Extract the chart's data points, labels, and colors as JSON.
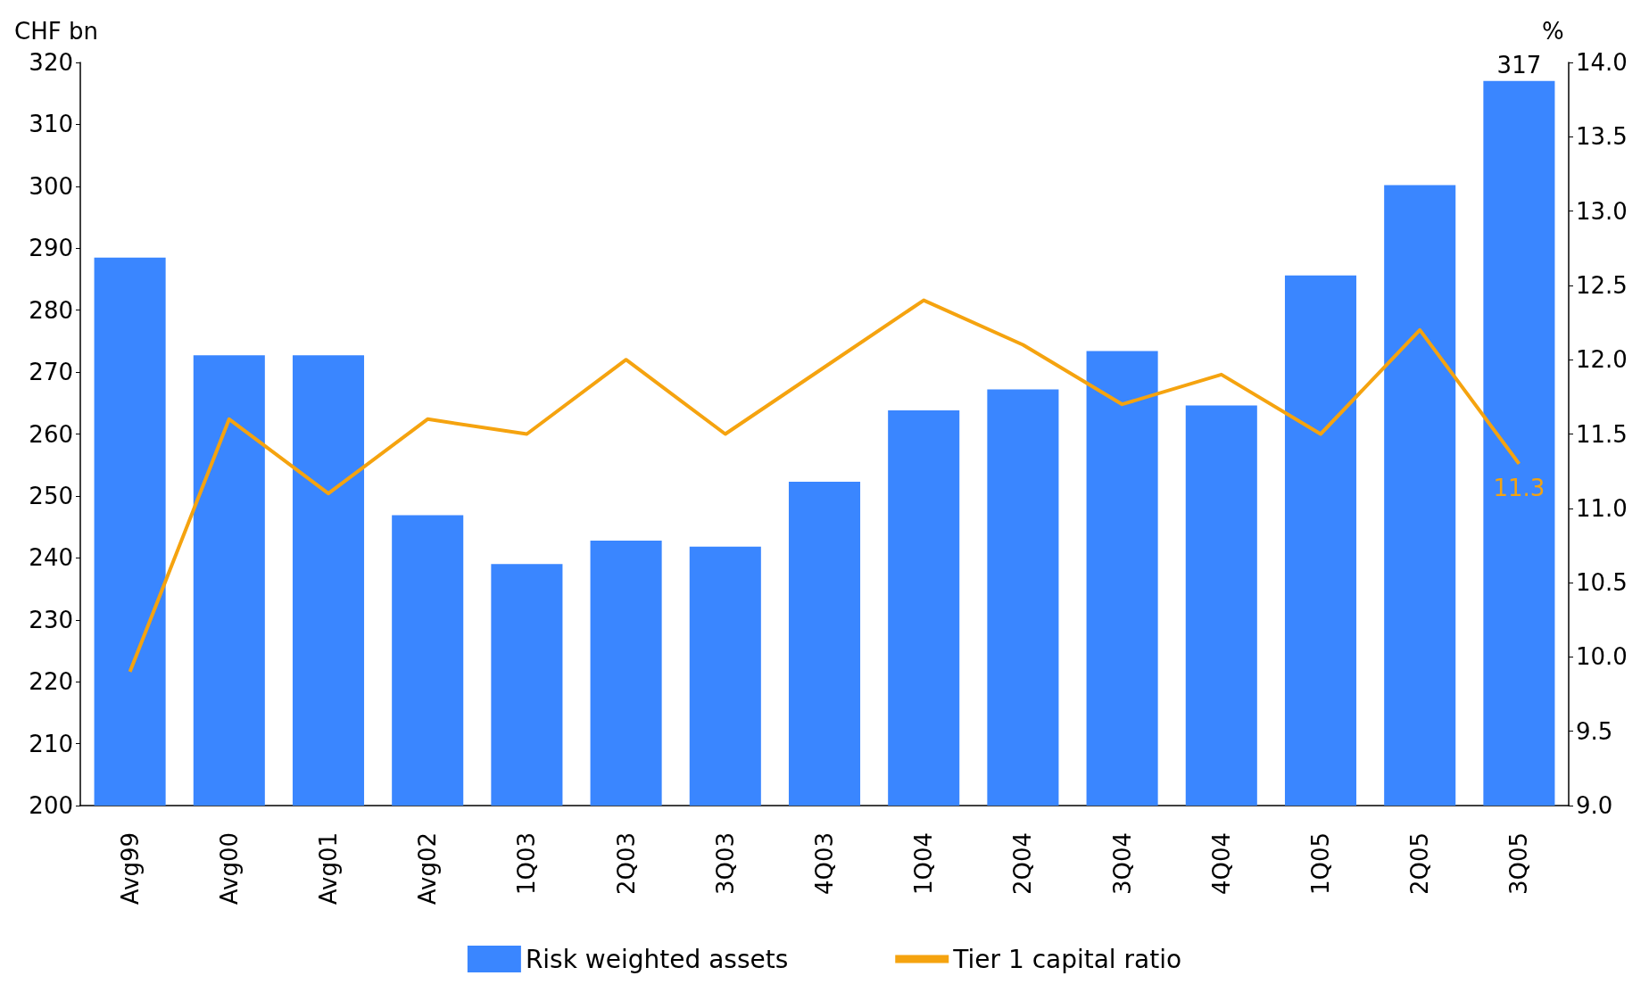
{
  "chart_data": {
    "type": "bar",
    "ylabel": "CHF bn",
    "y2label": "%",
    "categories": [
      "Avg99",
      "Avg00",
      "Avg01",
      "Avg02",
      "1Q03",
      "2Q03",
      "3Q03",
      "4Q03",
      "1Q04",
      "2Q04",
      "3Q04",
      "4Q04",
      "1Q05",
      "2Q05",
      "3Q05"
    ],
    "series": [
      {
        "name": "Risk weighted assets",
        "color": "#3a86ff",
        "values": [
          288.5,
          272.7,
          272.7,
          246.9,
          239,
          242.8,
          241.8,
          252.3,
          263.8,
          267.2,
          273.4,
          264.6,
          285.6,
          300.2,
          317
        ],
        "value_labels": [
          null,
          null,
          null,
          null,
          null,
          null,
          null,
          null,
          null,
          null,
          null,
          null,
          null,
          null,
          "317"
        ]
      },
      {
        "name": "Tier 1 capital ratio",
        "type": "line",
        "axis": "y2",
        "color": "#f5a30f",
        "values": [
          9.9,
          11.6,
          11.1,
          11.6,
          11.5,
          12.0,
          11.5,
          11.95,
          12.4,
          12.1,
          11.7,
          11.9,
          11.5,
          12.2,
          11.3
        ],
        "value_labels": [
          null,
          null,
          null,
          null,
          null,
          null,
          null,
          null,
          null,
          null,
          null,
          null,
          null,
          null,
          "11.3"
        ]
      }
    ],
    "ylim": [
      200,
      320
    ],
    "yticks": [
      200,
      210,
      220,
      230,
      240,
      250,
      260,
      270,
      280,
      290,
      300,
      310,
      320
    ],
    "y2lim": [
      9,
      14
    ],
    "y2ticks": [
      {
        "value": 9,
        "label": "9.0"
      },
      {
        "value": 9.5,
        "label": "9.5"
      },
      {
        "value": 10,
        "label": "10.0"
      },
      {
        "value": 10.5,
        "label": "10.5"
      },
      {
        "value": 11,
        "label": "11.0"
      },
      {
        "value": 11.5,
        "label": "11.5"
      },
      {
        "value": 12,
        "label": "12.0"
      },
      {
        "value": 12.5,
        "label": "12.5"
      },
      {
        "value": 13,
        "label": "13.0"
      },
      {
        "value": 13.5,
        "label": "13.5"
      },
      {
        "value": 14,
        "label": "14.0"
      }
    ],
    "grid": false,
    "legend": "bottom",
    "marker": "none",
    "line_style": "solid"
  }
}
